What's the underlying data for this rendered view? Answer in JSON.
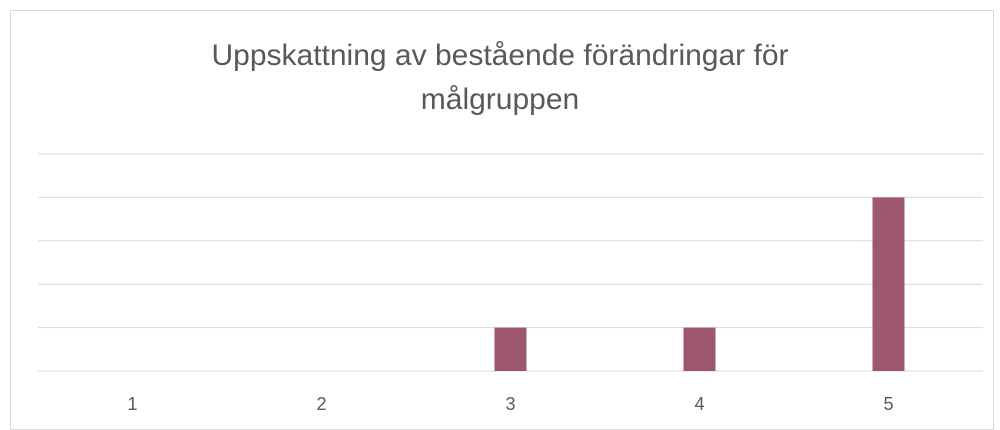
{
  "chart_data": {
    "type": "bar",
    "title": "Uppskattning av bestående förändringar för målgruppen",
    "categories": [
      "1",
      "2",
      "3",
      "4",
      "5"
    ],
    "values": [
      0,
      0,
      1,
      1,
      4
    ],
    "color": "#9e5770",
    "ylim": [
      0,
      5
    ],
    "yticks": [
      0,
      1,
      2,
      3,
      4,
      5
    ],
    "grid": true
  }
}
